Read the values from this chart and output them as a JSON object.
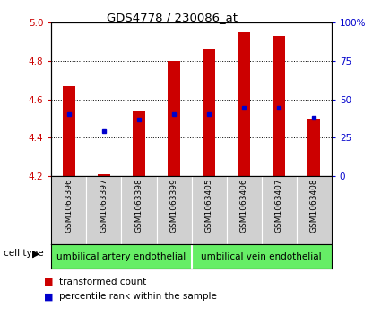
{
  "title": "GDS4778 / 230086_at",
  "samples": [
    "GSM1063396",
    "GSM1063397",
    "GSM1063398",
    "GSM1063399",
    "GSM1063405",
    "GSM1063406",
    "GSM1063407",
    "GSM1063408"
  ],
  "bar_tops": [
    4.67,
    4.21,
    4.54,
    4.8,
    4.86,
    4.95,
    4.93,
    4.5
  ],
  "bar_bottom": 4.2,
  "blue_dot_y": [
    4.525,
    4.435,
    4.495,
    4.525,
    4.525,
    4.555,
    4.555,
    4.505
  ],
  "ylim": [
    4.2,
    5.0
  ],
  "yticks_left": [
    4.2,
    4.4,
    4.6,
    4.8,
    5.0
  ],
  "yticks_right_vals": [
    0,
    25,
    50,
    75,
    100
  ],
  "yticks_right_labels": [
    "0",
    "25",
    "50",
    "75",
    "100%"
  ],
  "cell_types": [
    "umbilical artery endothelial",
    "umbilical vein endothelial"
  ],
  "n_group1": 4,
  "n_group2": 4,
  "bar_color": "#cc0000",
  "dot_color": "#0000cc",
  "plot_bg": "#ffffff",
  "left_color": "#cc0000",
  "right_color": "#0000cc",
  "gray_box": "#d0d0d0",
  "green_color": "#66ee66",
  "legend_red": "transformed count",
  "legend_blue": "percentile rank within the sample",
  "bar_width": 0.35
}
